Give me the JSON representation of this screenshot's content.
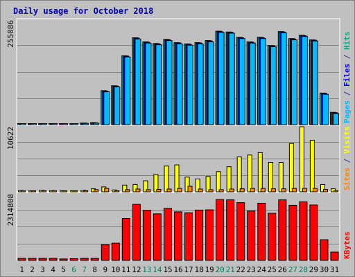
{
  "chart_data": {
    "type": "bar",
    "title": "Daily usage for October 2018",
    "categories": [
      "1",
      "2",
      "3",
      "4",
      "5",
      "6",
      "7",
      "8",
      "9",
      "10",
      "11",
      "12",
      "13",
      "14",
      "15",
      "16",
      "17",
      "18",
      "19",
      "20",
      "21",
      "22",
      "23",
      "24",
      "25",
      "26",
      "27",
      "28",
      "29",
      "30",
      "31"
    ],
    "weekend_days": [
      "6",
      "7",
      "13",
      "14",
      "20",
      "21",
      "27",
      "28"
    ],
    "panels": [
      {
        "id": "pages",
        "scale_max_label": "255086",
        "ymax": 255086,
        "right_label_parts": [
          {
            "text": "Pages",
            "color": "#00bbff"
          },
          {
            "text": " / ",
            "color": "#333399"
          },
          {
            "text": "Files",
            "color": "#0000ff"
          },
          {
            "text": " / ",
            "color": "#333399"
          },
          {
            "text": "Hits",
            "color": "#00aa88"
          }
        ],
        "series": [
          {
            "name": "Hits",
            "color": "#00aa88",
            "values": [
              2000,
              2000,
              2000,
              2000,
              2000,
              2000,
              4000,
              5000,
              83000,
              95000,
              168000,
              212000,
              202000,
              198000,
              208000,
              200000,
              197000,
              200000,
              205000,
              228000,
              226000,
              213000,
              202000,
              213000,
              193000,
              227000,
              210000,
              218000,
              207000,
              77000,
              30000
            ]
          },
          {
            "name": "Files",
            "color": "#0000ff",
            "values": [
              2000,
              2000,
              2000,
              2000,
              2000,
              2000,
              3800,
              4500,
              82000,
              94000,
              167000,
              211000,
              201000,
              197000,
              207000,
              199000,
              196000,
              199000,
              204000,
              227000,
              225000,
              212000,
              201000,
              212000,
              192000,
              226000,
              209000,
              217000,
              206000,
              76000,
              29000
            ]
          },
          {
            "name": "Pages",
            "color": "#00bbff",
            "values": [
              1500,
              1500,
              1500,
              1500,
              1500,
              1500,
              3000,
              3500,
              80000,
              92000,
              165000,
              209000,
              199000,
              195000,
              205000,
              197000,
              194000,
              197000,
              202000,
              225000,
              223000,
              210000,
              199000,
              210000,
              190000,
              224000,
              207000,
              215000,
              204000,
              74000,
              27000
            ]
          }
        ]
      },
      {
        "id": "visits",
        "scale_max_label": "10622",
        "ymax": 10622,
        "right_label_parts": [
          {
            "text": "Sites",
            "color": "#ff8800"
          },
          {
            "text": " / ",
            "color": "#333399"
          },
          {
            "text": "Visits",
            "color": "#ffff00"
          }
        ],
        "series": [
          {
            "name": "Visits",
            "color": "#ffff00",
            "values": [
              200,
              180,
              250,
              200,
              180,
              150,
              250,
              500,
              800,
              300,
              1100,
              1200,
              1800,
              2800,
              4200,
              4400,
              2400,
              2100,
              2500,
              3300,
              4100,
              5700,
              6000,
              6400,
              4800,
              4800,
              7900,
              10622,
              8400,
              1200,
              500
            ]
          },
          {
            "name": "Sites",
            "color": "#ff8800",
            "values": [
              150,
              130,
              180,
              150,
              130,
              110,
              180,
              350,
              550,
              150,
              350,
              450,
              350,
              400,
              450,
              550,
              900,
              450,
              350,
              350,
              450,
              500,
              550,
              550,
              500,
              500,
              550,
              550,
              550,
              400,
              200
            ]
          }
        ]
      },
      {
        "id": "kbytes",
        "scale_max_label": "2314808",
        "ymax": 2314808,
        "right_label_parts": [
          {
            "text": "KBytes",
            "color": "#ff0000"
          }
        ],
        "series": [
          {
            "name": "KBytes",
            "color": "#ff0000",
            "values": [
              70000,
              70000,
              70000,
              70000,
              50000,
              60000,
              70000,
              70000,
              550000,
              600000,
              1460000,
              1950000,
              1740000,
              1620000,
              1810000,
              1690000,
              1660000,
              1750000,
              1760000,
              2120000,
              2110000,
              2010000,
              1720000,
              1990000,
              1640000,
              2110000,
              1920000,
              2040000,
              1930000,
              720000,
              290000
            ]
          }
        ]
      }
    ],
    "background_color": "#c0c0c0",
    "frame_color": "#ffffff",
    "axis_label_color": "#000000",
    "weekend_label_color": "#008060",
    "title_color": "#0000aa"
  }
}
